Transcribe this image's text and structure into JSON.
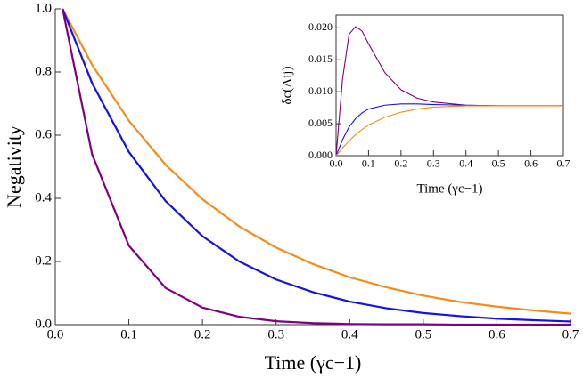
{
  "chart_data": [
    {
      "type": "line",
      "x_label": "Time (γc−1)",
      "y_label": "Negativity",
      "xlim": [
        0,
        0.7
      ],
      "ylim": [
        0,
        1
      ],
      "xticks": [
        {
          "value": 0,
          "label": "0.0"
        },
        0.1,
        0.2,
        0.3,
        0.4,
        0.5,
        0.6,
        0.7
      ],
      "yticks": [
        {
          "value": 0,
          "label": "0.0"
        },
        0.2,
        0.4,
        0.6,
        0.8,
        {
          "value": 1,
          "label": "1.0"
        }
      ],
      "x": [
        0.01,
        0.05,
        0.1,
        0.15,
        0.2,
        0.25,
        0.3,
        0.35,
        0.4,
        0.45,
        0.5,
        0.55,
        0.6,
        0.65,
        0.7
      ],
      "series": [
        {
          "color": "#f28c1c",
          "values": [
            1,
            0.823,
            0.646,
            0.506,
            0.397,
            0.311,
            0.244,
            0.192,
            0.15,
            0.118,
            0.092,
            0.072,
            0.057,
            0.045,
            0.035
          ]
        },
        {
          "color": "#1414e0",
          "values": [
            1,
            0.765,
            0.547,
            0.391,
            0.28,
            0.2,
            0.143,
            0.103,
            0.073,
            0.052,
            0.037,
            0.027,
            0.019,
            0.014,
            0.01
          ]
        },
        {
          "color": "#800080",
          "values": [
            1,
            0.54,
            0.25,
            0.116,
            0.054,
            0.025,
            0.011,
            0.005,
            0.002,
            0.001,
            0.001,
            0,
            0,
            0,
            0
          ]
        }
      ]
    },
    {
      "type": "line",
      "x_label": "Time (γc−1)",
      "y_label": "δc(Λij)",
      "xlim": [
        0,
        0.7
      ],
      "ylim": [
        0,
        0.022
      ],
      "xticks": [
        {
          "value": 0,
          "label": "0.0"
        },
        0.1,
        0.2,
        0.3,
        0.4,
        0.5,
        0.6,
        0.7
      ],
      "yticks": [
        {
          "value": 0,
          "label": "0.000"
        },
        {
          "value": 0.005,
          "label": "0.005"
        },
        {
          "value": 0.01,
          "label": "0.010"
        },
        {
          "value": 0.015,
          "label": "0.015"
        },
        {
          "value": 0.02,
          "label": "0.020"
        }
      ],
      "x": [
        0,
        0.02,
        0.04,
        0.06,
        0.08,
        0.1,
        0.15,
        0.2,
        0.25,
        0.3,
        0.4,
        0.5,
        0.6,
        0.7
      ],
      "series": [
        {
          "color": "#800080",
          "values": [
            0,
            0.012,
            0.019,
            0.0202,
            0.0195,
            0.0175,
            0.013,
            0.0103,
            0.009,
            0.0084,
            0.0079,
            0.0078,
            0.0078,
            0.0078
          ]
        },
        {
          "color": "#1414e0",
          "values": [
            0,
            0.0025,
            0.0045,
            0.0058,
            0.0067,
            0.0073,
            0.0079,
            0.0081,
            0.0081,
            0.008,
            0.0079,
            0.0078,
            0.0078,
            0.0078
          ]
        },
        {
          "color": "#f28c1c",
          "values": [
            0,
            0.0012,
            0.0023,
            0.0033,
            0.0041,
            0.0048,
            0.006,
            0.0068,
            0.0073,
            0.0076,
            0.0078,
            0.0078,
            0.0078,
            0.0078
          ]
        }
      ]
    }
  ]
}
